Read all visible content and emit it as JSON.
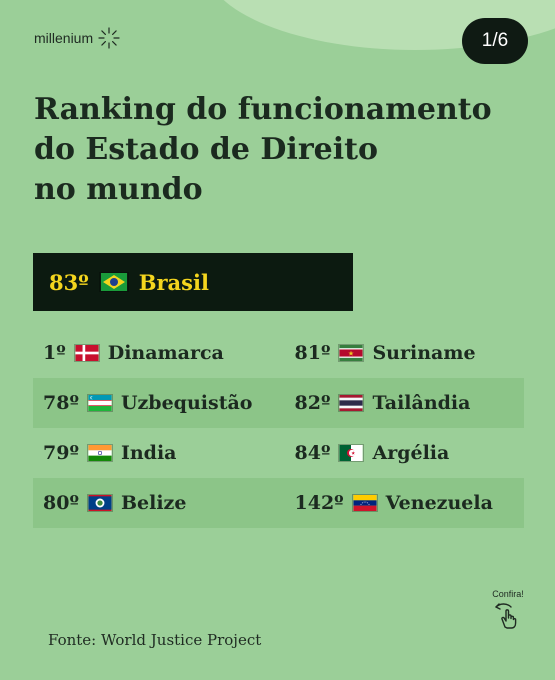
{
  "brand": {
    "name": "millenium"
  },
  "page_indicator": "1/6",
  "title_lines": [
    "Ranking do funcionamento",
    "do Estado de Direito",
    "no mundo"
  ],
  "highlight": {
    "rank": "83º",
    "country": "Brasil",
    "flag_icon": "brazil-flag-icon"
  },
  "rows": [
    {
      "left": {
        "rank": "1º",
        "country": "Dinamarca",
        "flag_icon": "denmark-flag-icon"
      },
      "right": {
        "rank": "81º",
        "country": "Suriname",
        "flag_icon": "suriname-flag-icon"
      }
    },
    {
      "left": {
        "rank": "78º",
        "country": "Uzbequistão",
        "flag_icon": "uzbekistan-flag-icon"
      },
      "right": {
        "rank": "82º",
        "country": "Tailândia",
        "flag_icon": "thailand-flag-icon"
      }
    },
    {
      "left": {
        "rank": "79º",
        "country": "India",
        "flag_icon": "india-flag-icon"
      },
      "right": {
        "rank": "84º",
        "country": "Argélia",
        "flag_icon": "algeria-flag-icon"
      }
    },
    {
      "left": {
        "rank": "80º",
        "country": "Belize",
        "flag_icon": "belize-flag-icon"
      },
      "right": {
        "rank": "142º",
        "country": "Venezuela",
        "flag_icon": "venezuela-flag-icon"
      }
    }
  ],
  "confira": {
    "label": "Confira!",
    "icon": "swipe-hand-icon"
  },
  "source": "Fonte: World Justice Project",
  "colors": {
    "background": "#9bcf98",
    "highlight_bg": "#0c1a10",
    "highlight_text": "#f4d51e",
    "badge_bg": "#0f1a13",
    "row_alt": "#8cc588"
  }
}
